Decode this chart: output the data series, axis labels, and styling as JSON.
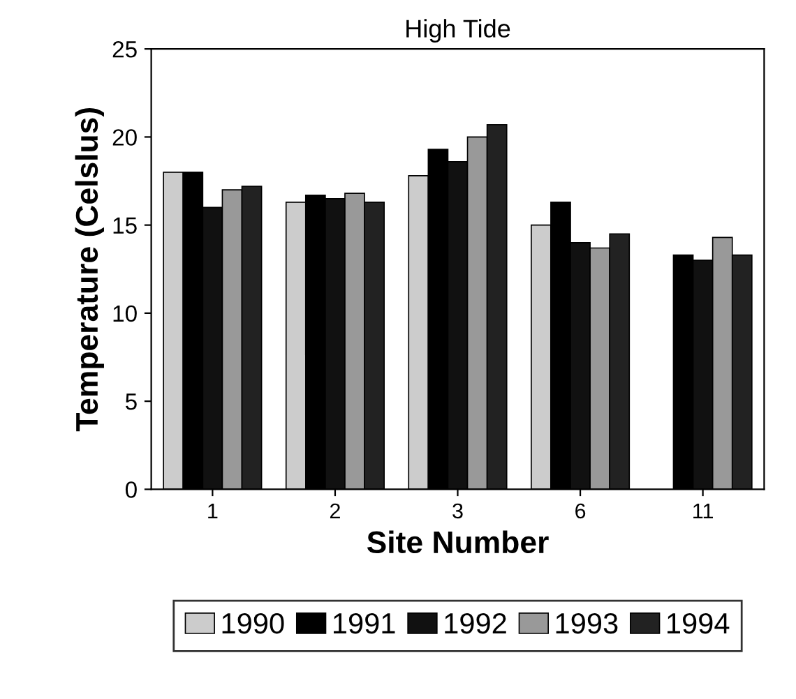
{
  "chart_data": {
    "type": "bar",
    "title": "High Tide",
    "xlabel": "Site Number",
    "ylabel": "Temperature (Celslus)",
    "categories": [
      "1",
      "2",
      "3",
      "6",
      "11"
    ],
    "series": [
      {
        "name": "1990",
        "color": "#cccccc",
        "values": [
          18,
          16.3,
          17.8,
          15,
          null
        ]
      },
      {
        "name": "1991",
        "color": "#000000",
        "values": [
          18,
          16.7,
          19.3,
          16.3,
          13.3
        ]
      },
      {
        "name": "1992",
        "color": "#111111",
        "values": [
          16,
          16.5,
          18.6,
          14,
          13
        ]
      },
      {
        "name": "1993",
        "color": "#999999",
        "values": [
          17,
          16.8,
          20,
          13.7,
          14.3
        ]
      },
      {
        "name": "1994",
        "color": "#222222",
        "values": [
          17.2,
          16.3,
          20.7,
          14.5,
          13.3
        ]
      }
    ],
    "ylim": [
      0,
      25
    ],
    "yticks": [
      0,
      5,
      10,
      15,
      20,
      25
    ],
    "legend": "bottom",
    "grid": false
  }
}
